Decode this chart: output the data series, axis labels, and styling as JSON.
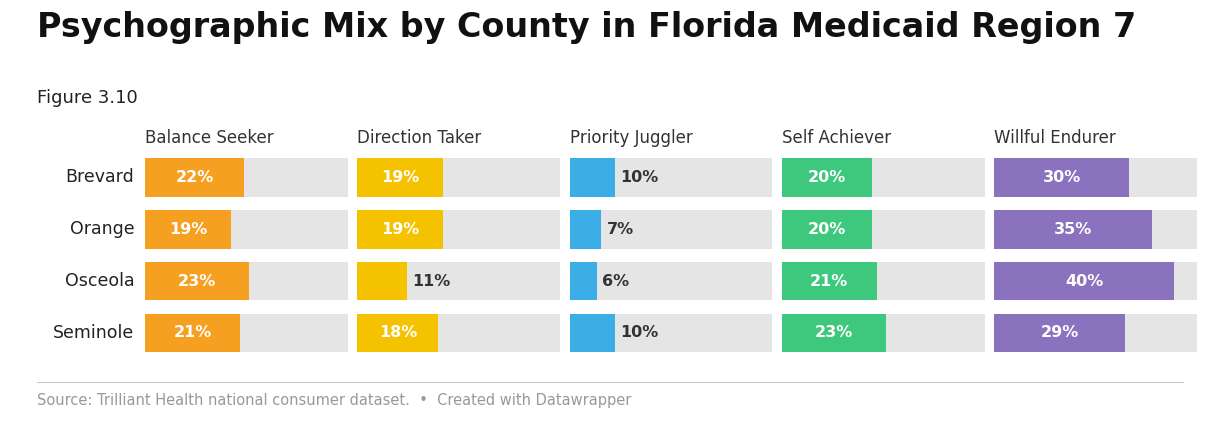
{
  "title": "Psychographic Mix by County in Florida Medicaid Region 7",
  "subtitle": "Figure 3.10",
  "source_text": "Source: Trilliant Health national consumer dataset.  •  Created with Datawrapper",
  "counties": [
    "Brevard",
    "Orange",
    "Osceola",
    "Seminole"
  ],
  "segments": [
    "Balance Seeker",
    "Direction Taker",
    "Priority Juggler",
    "Self Achiever",
    "Willful Endurer"
  ],
  "colors": [
    "#F5A020",
    "#F5C200",
    "#3BAEE8",
    "#3DC87E",
    "#8B72BE"
  ],
  "data": {
    "Balance Seeker": [
      22,
      19,
      23,
      21
    ],
    "Direction Taker": [
      19,
      19,
      11,
      18
    ],
    "Priority Juggler": [
      10,
      7,
      6,
      10
    ],
    "Self Achiever": [
      20,
      20,
      21,
      23
    ],
    "Willful Endurer": [
      30,
      35,
      40,
      29
    ]
  },
  "max_val": 45,
  "background_color": "#ffffff",
  "bar_bg_color": "#e5e5e5",
  "title_fontsize": 24,
  "subtitle_fontsize": 13,
  "label_fontsize": 11.5,
  "county_fontsize": 12.5,
  "segment_fontsize": 12,
  "source_fontsize": 10.5,
  "inside_threshold": 14
}
